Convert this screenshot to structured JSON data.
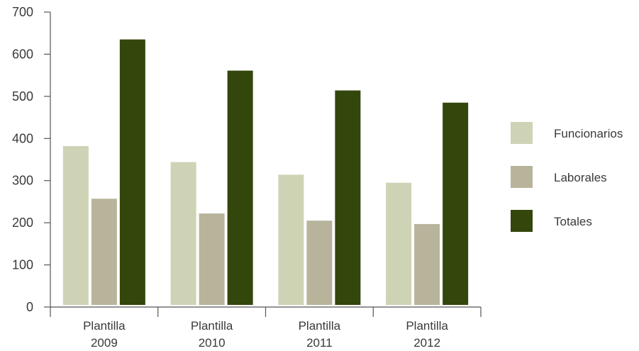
{
  "chart_data": {
    "type": "bar",
    "title": "",
    "xlabel": "",
    "ylabel": "",
    "categories": [
      [
        "Plantilla",
        "2009"
      ],
      [
        "Plantilla",
        "2010"
      ],
      [
        "Plantilla",
        "2011"
      ],
      [
        "Plantilla",
        "2012"
      ]
    ],
    "series": [
      {
        "name": "Funcionarios",
        "color": "#cfd3b5",
        "values": [
          382,
          344,
          314,
          295
        ]
      },
      {
        "name": "Laborales",
        "color": "#b8b49b",
        "values": [
          257,
          222,
          205,
          197
        ]
      },
      {
        "name": "Totales",
        "color": "#33460c",
        "values": [
          635,
          561,
          514,
          485
        ]
      }
    ],
    "ylim": [
      0,
      700
    ],
    "yticks": [
      0,
      100,
      200,
      300,
      400,
      500,
      600,
      700
    ],
    "grid": false,
    "legend": "right"
  }
}
